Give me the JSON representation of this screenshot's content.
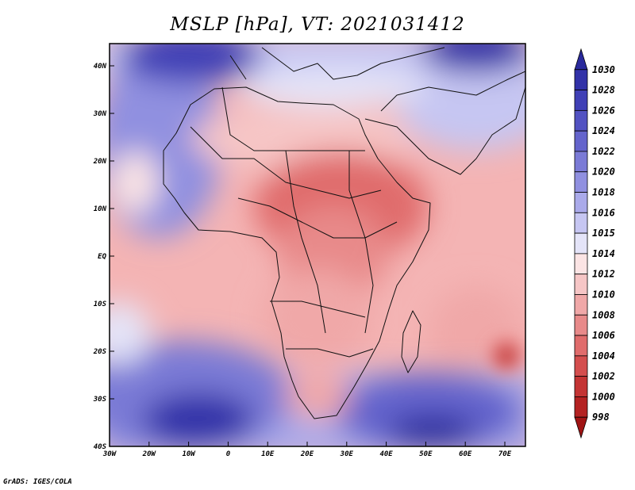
{
  "title": "MSLP [hPa], VT: 2021031412",
  "footer": "GrADS: IGES/COLA",
  "map": {
    "lat_ticks": [
      "40N",
      "30N",
      "20N",
      "10N",
      "EQ",
      "10S",
      "20S",
      "30S",
      "40S"
    ],
    "lon_ticks": [
      "30W",
      "20W",
      "10W",
      "0",
      "10E",
      "20E",
      "30E",
      "40E",
      "50E",
      "60E",
      "70E"
    ]
  },
  "colorbar": {
    "levels": [
      "1030",
      "1028",
      "1026",
      "1024",
      "1022",
      "1020",
      "1018",
      "1016",
      "1015",
      "1014",
      "1012",
      "1010",
      "1008",
      "1006",
      "1004",
      "1002",
      "1000",
      "998"
    ],
    "colors": [
      "#2a2a9c",
      "#3232a8",
      "#4040b6",
      "#5252c2",
      "#6464cc",
      "#7a7ad6",
      "#9090e0",
      "#aaaaea",
      "#c6c6f2",
      "#e4e4f8",
      "#fbe4e4",
      "#f6c6c6",
      "#f0a8a8",
      "#e88a8a",
      "#e06c6c",
      "#d44e4e",
      "#c43434",
      "#b42222",
      "#a01414"
    ]
  }
}
